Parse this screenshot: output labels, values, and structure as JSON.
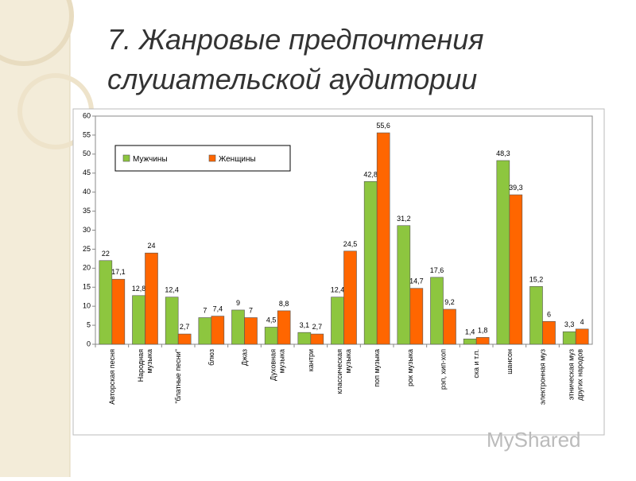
{
  "chart_data": {
    "type": "bar",
    "title": [
      "7. Жанровые предпочтения",
      "слушательской аудитории"
    ],
    "watermark": "MyShared",
    "categories": [
      [
        "Авторская песня"
      ],
      [
        "Народная",
        "музыка"
      ],
      [
        "\"блатные песни\""
      ],
      [
        "блюз"
      ],
      [
        "Джаз"
      ],
      [
        "Духовная",
        "музыка"
      ],
      [
        "кантри"
      ],
      [
        "классическая",
        "музыка"
      ],
      [
        "поп музыка"
      ],
      [
        "рок музыка"
      ],
      [
        "рэп, хип-хоп"
      ],
      [
        "ска и т.п."
      ],
      [
        "шансон"
      ],
      [
        "электронная муз"
      ],
      [
        "этническая муз",
        "других народов"
      ]
    ],
    "series": [
      {
        "name": "Мужчины",
        "color": "#8dc63f",
        "values": [
          22,
          12.8,
          12.4,
          7,
          9,
          4.5,
          3.1,
          12.4,
          42.8,
          31.2,
          17.6,
          1.4,
          48.3,
          15.2,
          3.3
        ],
        "value_labels": [
          "22",
          "12,8",
          "12,4",
          "7",
          "9",
          "4,5",
          "3,1",
          "12,4",
          "42,8",
          "31,2",
          "17,6",
          "1,4",
          "48,3",
          "15,2",
          "3,3"
        ]
      },
      {
        "name": "Женщины",
        "color": "#ff6600",
        "values": [
          17.1,
          24,
          2.7,
          7.4,
          7,
          8.8,
          2.7,
          24.5,
          55.6,
          14.7,
          9.2,
          1.8,
          39.3,
          6,
          4
        ],
        "value_labels": [
          "17,1",
          "24",
          "2,7",
          "7,4",
          "7",
          "8,8",
          "2,7",
          "24,5",
          "55,6",
          "14,7",
          "9,2",
          "1,8",
          "39,3",
          "6",
          "4"
        ]
      }
    ],
    "ylim": [
      0,
      60
    ],
    "yticks": [
      0,
      5,
      10,
      15,
      20,
      25,
      30,
      35,
      40,
      45,
      50,
      55,
      60
    ],
    "grid": false,
    "legend": "top-left"
  }
}
